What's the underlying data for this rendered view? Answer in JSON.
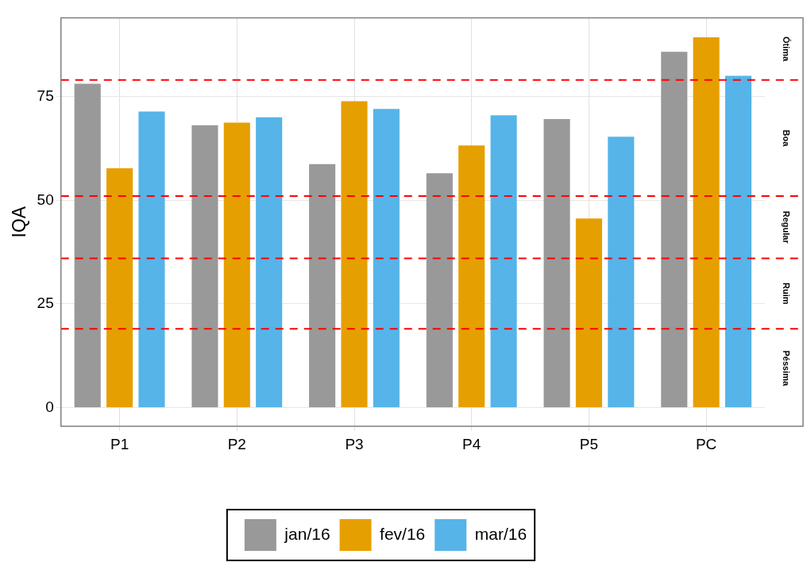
{
  "chart_data": {
    "type": "bar",
    "ylabel": "IQA",
    "categories": [
      "P1",
      "P2",
      "P3",
      "P4",
      "P5",
      "PC"
    ],
    "series": [
      {
        "name": "jan/16",
        "color": "#999999",
        "values": [
          78.1,
          68.1,
          58.7,
          56.5,
          69.6,
          85.8
        ]
      },
      {
        "name": "fev/16",
        "color": "#e69f00",
        "values": [
          57.7,
          68.7,
          73.9,
          63.2,
          45.6,
          89.3
        ]
      },
      {
        "name": "mar/16",
        "color": "#56b4e9",
        "values": [
          71.4,
          70.0,
          72.0,
          70.5,
          65.3,
          80.0
        ]
      }
    ],
    "ylim": [
      -4.5,
      94
    ],
    "yticks": [
      0,
      25,
      50,
      75
    ],
    "grid": true,
    "legend": "bottom",
    "ref_lines": [
      {
        "axis": "y",
        "value": 79,
        "color": "#ff0000",
        "line_style": "dashed"
      },
      {
        "axis": "y",
        "value": 51,
        "color": "#ff0000",
        "line_style": "dashed"
      },
      {
        "axis": "y",
        "value": 36,
        "color": "#ff0000",
        "line_style": "dashed"
      },
      {
        "axis": "y",
        "value": 19,
        "color": "#ff0000",
        "line_style": "dashed"
      }
    ],
    "annotations": [
      "Ótima",
      "Boa",
      "Regular",
      "Ruim",
      "Péssima"
    ]
  }
}
